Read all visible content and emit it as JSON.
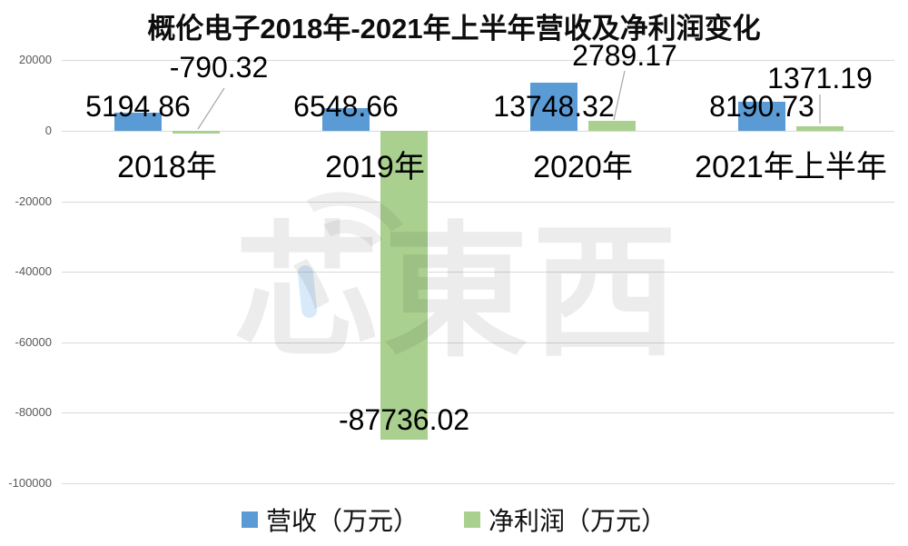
{
  "chart_data": {
    "type": "bar",
    "title": "概伦电子2018年-2021年上半年营收及净利润变化",
    "categories": [
      "2018年",
      "2019年",
      "2020年",
      "2021年上半年"
    ],
    "series": [
      {
        "name": "营收（万元）",
        "color": "#5B9BD5",
        "values": [
          5194.86,
          6548.66,
          13748.32,
          8190.73
        ],
        "labels": [
          "5194.86",
          "6548.66",
          "13748.32",
          "8190.73"
        ]
      },
      {
        "name": "净利润（万元）",
        "color": "#A9D08E",
        "values": [
          -790.32,
          -87736.02,
          2789.17,
          1371.19
        ],
        "labels": [
          "-790.32",
          "-87736.02",
          "2789.17",
          "1371.19"
        ]
      }
    ],
    "y_ticks": [
      20000,
      0,
      -20000,
      -40000,
      -60000,
      -80000,
      -100000
    ],
    "y_tick_labels": [
      "20000",
      "0",
      "-20000",
      "-40000",
      "-60000",
      "-80000",
      "-100000"
    ],
    "ylim": [
      -100000,
      20000
    ],
    "grid": true,
    "legend_position": "bottom",
    "gridline_color": "#D9D9D9",
    "tick_label_color": "#595959",
    "leader_line_color": "#A6A6A6"
  },
  "watermark": {
    "text": "芯東西"
  }
}
